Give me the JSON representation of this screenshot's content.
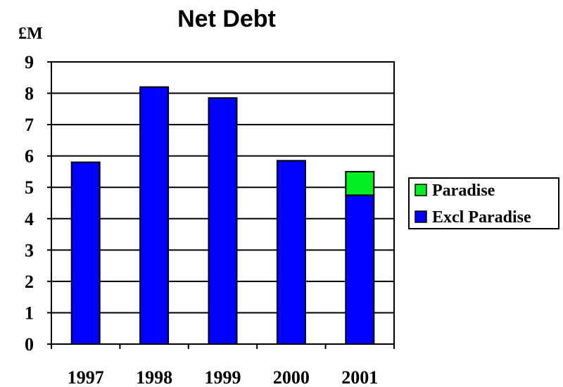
{
  "chart_data": {
    "type": "bar",
    "stacked": true,
    "title": "Net Debt",
    "ylabel": "£M",
    "xlabel": "",
    "categories": [
      "1997",
      "1998",
      "1999",
      "2000",
      "2001"
    ],
    "series": [
      {
        "name": "Excl Paradise",
        "color": "#0000ff",
        "values": [
          5.8,
          8.2,
          7.85,
          5.85,
          4.75
        ]
      },
      {
        "name": "Paradise",
        "color": "#00ee22",
        "values": [
          0,
          0,
          0,
          0,
          0.75
        ]
      }
    ],
    "yticks": [
      "0",
      "1",
      "2",
      "3",
      "4",
      "5",
      "6",
      "7",
      "8",
      "9"
    ],
    "ylim": [
      0,
      9
    ],
    "grid": true,
    "legend_position": "right",
    "legend_order": [
      "Paradise",
      "Excl Paradise"
    ]
  }
}
